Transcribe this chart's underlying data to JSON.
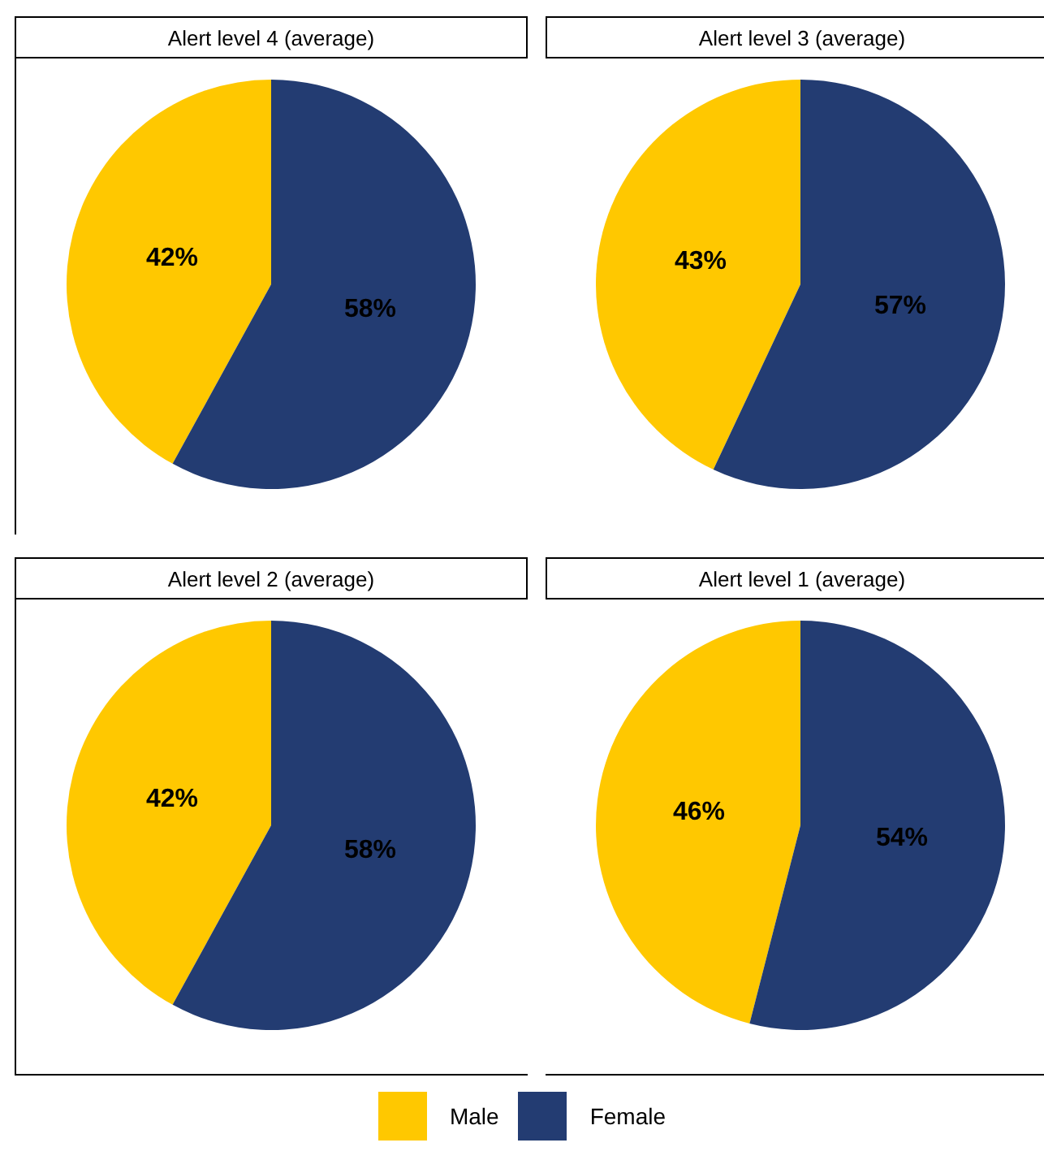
{
  "chart_data": [
    {
      "type": "pie",
      "title": "Alert level 4 (average)",
      "categories": [
        "Male",
        "Female"
      ],
      "values": [
        42,
        58
      ],
      "value_labels": [
        "42%",
        "58%"
      ],
      "colors": [
        "#ffc800",
        "#233c72"
      ],
      "legend": "bottom"
    },
    {
      "type": "pie",
      "title": "Alert level 3 (average)",
      "categories": [
        null,
        null
      ],
      "values": [
        43,
        57
      ],
      "value_labels": [
        "43%",
        "57%"
      ],
      "colors": [
        "#ffc800",
        "#233c72"
      ]
    },
    {
      "type": "pie",
      "title": "Alert level 2 (average)",
      "categories": [
        null,
        null
      ],
      "values": [
        42,
        58
      ],
      "value_labels": [
        "42%",
        "58%"
      ],
      "colors": [
        "#ffc800",
        "#233c72"
      ]
    },
    {
      "type": "pie",
      "title": "Alert level 1 (average)",
      "categories": [
        null,
        null
      ],
      "values": [
        46,
        54
      ],
      "value_labels": [
        "46%",
        "54%"
      ],
      "colors": [
        "#ffc800",
        "#233c72"
      ]
    }
  ]
}
